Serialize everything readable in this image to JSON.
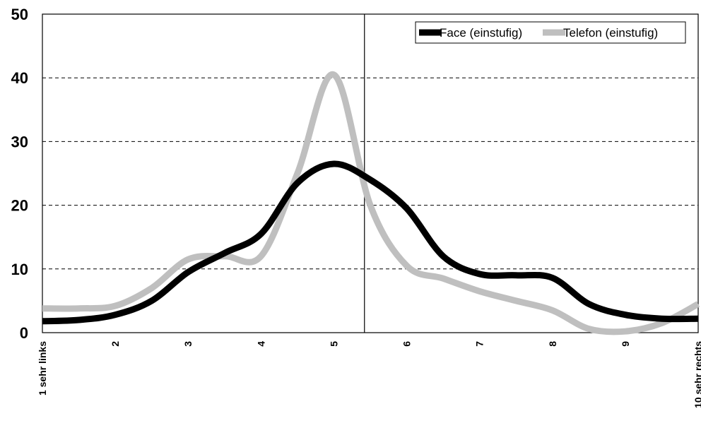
{
  "chart_data": {
    "type": "line",
    "ylim": [
      0,
      50
    ],
    "y_ticks": [
      "0",
      "10",
      "20",
      "30",
      "40",
      "50"
    ],
    "x_positions": [
      1,
      2,
      3,
      4,
      5,
      6,
      7,
      8,
      9,
      10
    ],
    "x_tick_labels": [
      "1 sehr links",
      "2",
      "3",
      "4",
      "5",
      "6",
      "7",
      "8",
      "9",
      "10 sehr rechts"
    ],
    "grid": "horizontal dashed",
    "vertical_marker_x": 5.42,
    "legend_position": "top-right",
    "series": [
      {
        "name": "Face (einstufig)",
        "color": "#000000",
        "x": [
          1,
          1.5,
          2,
          2.5,
          3,
          3.5,
          4,
          4.5,
          5,
          5.5,
          6,
          6.5,
          7,
          7.5,
          8,
          8.5,
          9,
          9.5,
          10
        ],
        "y": [
          1.8,
          2.0,
          2.8,
          5.0,
          9.5,
          12.5,
          15.5,
          23.5,
          26.5,
          24.0,
          19.5,
          12.0,
          9.2,
          9.0,
          8.6,
          4.5,
          2.8,
          2.2,
          2.2
        ]
      },
      {
        "name": "Telefon (einstufig)",
        "color": "#bfbfbf",
        "x": [
          1,
          1.5,
          2,
          2.5,
          3,
          3.5,
          4,
          4.5,
          5,
          5.5,
          6,
          6.5,
          7,
          7.5,
          8,
          8.5,
          9,
          9.5,
          10
        ],
        "y": [
          3.8,
          3.8,
          4.2,
          7.0,
          11.5,
          12.0,
          12.0,
          25.0,
          40.5,
          20.0,
          10.5,
          8.5,
          6.5,
          5.0,
          3.5,
          0.6,
          0.2,
          1.5,
          4.5
        ]
      }
    ]
  }
}
